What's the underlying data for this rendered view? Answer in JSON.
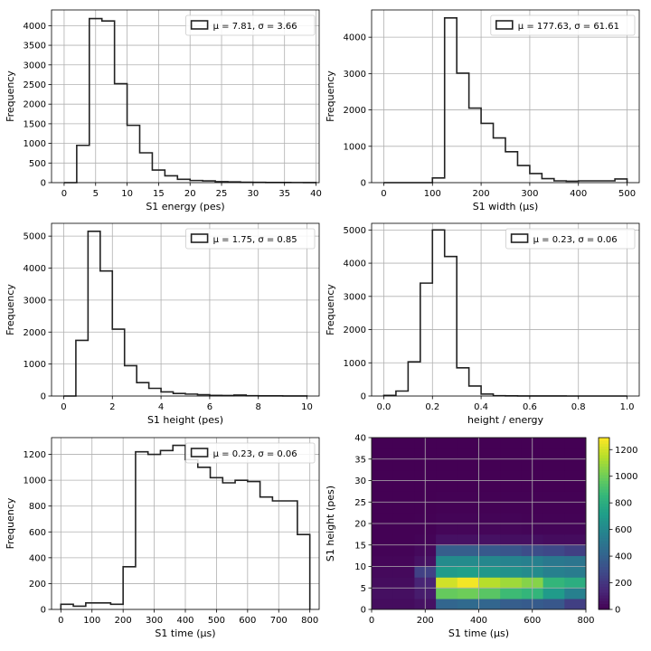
{
  "chart_data": [
    {
      "type": "histogram",
      "xlabel": "S1 energy (pes)",
      "ylabel": "Frequency",
      "xlim": [
        -2,
        40.5
      ],
      "ylim": [
        0,
        4400
      ],
      "xticks": [
        0,
        5,
        10,
        15,
        20,
        25,
        30,
        35,
        40
      ],
      "yticks": [
        0,
        500,
        1000,
        1500,
        2000,
        2500,
        3000,
        3500,
        4000
      ],
      "bin_edges": [
        0,
        2,
        4,
        6,
        8,
        10,
        12,
        14,
        16,
        18,
        20,
        22,
        24,
        26,
        28,
        30,
        32,
        34,
        36,
        38,
        40
      ],
      "counts": [
        0,
        950,
        4180,
        4120,
        2520,
        1460,
        760,
        320,
        175,
        85,
        55,
        45,
        25,
        18,
        10,
        8,
        5,
        4,
        3,
        2
      ],
      "legend": {
        "label": "μ = 7.81,  σ = 3.66",
        "loc": "upper right"
      },
      "grid": true
    },
    {
      "type": "histogram",
      "xlabel": "S1 width (μs)",
      "ylabel": "Frequency",
      "xlim": [
        -25,
        525
      ],
      "ylim": [
        0,
        4750
      ],
      "xticks": [
        0,
        100,
        200,
        300,
        400,
        500
      ],
      "yticks": [
        0,
        1000,
        2000,
        3000,
        4000
      ],
      "bin_edges": [
        0,
        25,
        50,
        75,
        100,
        125,
        150,
        175,
        200,
        225,
        250,
        275,
        300,
        325,
        350,
        375,
        400,
        425,
        450,
        475,
        500
      ],
      "counts": [
        0,
        0,
        0,
        0,
        130,
        4530,
        3010,
        2050,
        1630,
        1230,
        850,
        470,
        250,
        110,
        50,
        40,
        50,
        50,
        50,
        100
      ],
      "legend": {
        "label": "μ = 177.63,  σ = 61.61",
        "loc": "upper right"
      },
      "grid": true
    },
    {
      "type": "histogram",
      "xlabel": "S1 height (pes)",
      "ylabel": "Frequency",
      "xlim": [
        -0.5,
        10.5
      ],
      "ylim": [
        0,
        5400
      ],
      "xticks": [
        0,
        2,
        4,
        6,
        8,
        10
      ],
      "yticks": [
        0,
        1000,
        2000,
        3000,
        4000,
        5000
      ],
      "bin_edges": [
        0,
        0.5,
        1,
        1.5,
        2,
        2.5,
        3,
        3.5,
        4,
        4.5,
        5,
        5.5,
        6,
        6.5,
        7,
        7.5,
        8,
        8.5,
        9,
        9.5,
        10
      ],
      "counts": [
        0,
        1740,
        5150,
        3910,
        2090,
        950,
        420,
        240,
        130,
        80,
        60,
        40,
        20,
        15,
        30,
        10,
        5,
        5,
        3,
        2
      ],
      "legend": {
        "label": "μ = 1.75,  σ = 0.85",
        "loc": "upper right"
      },
      "grid": true
    },
    {
      "type": "histogram",
      "xlabel": "height / energy",
      "ylabel": "Frequency",
      "xlim": [
        -0.05,
        1.05
      ],
      "ylim": [
        0,
        5200
      ],
      "xticks": [
        0.0,
        0.2,
        0.4,
        0.6,
        0.8,
        1.0
      ],
      "yticks": [
        0,
        1000,
        2000,
        3000,
        4000,
        5000
      ],
      "bin_edges": [
        0,
        0.05,
        0.1,
        0.15,
        0.2,
        0.25,
        0.3,
        0.35,
        0.4,
        0.45,
        0.5,
        0.55,
        0.6,
        0.65,
        0.7,
        0.75,
        0.8,
        0.85,
        0.9,
        0.95,
        1.0
      ],
      "counts": [
        20,
        150,
        1030,
        3400,
        5000,
        4200,
        850,
        300,
        60,
        10,
        5,
        3,
        2,
        1,
        1,
        0,
        0,
        0,
        0,
        0
      ],
      "legend": {
        "label": "μ = 0.23,  σ = 0.06",
        "loc": "upper right"
      },
      "grid": true
    },
    {
      "type": "histogram",
      "xlabel": "S1 time (μs)",
      "ylabel": "Frequency",
      "xlim": [
        -30,
        830
      ],
      "ylim": [
        0,
        1330
      ],
      "xticks": [
        0,
        100,
        200,
        300,
        400,
        500,
        600,
        700,
        800
      ],
      "yticks": [
        0,
        200,
        400,
        600,
        800,
        1000,
        1200
      ],
      "bin_edges": [
        0,
        40,
        80,
        120,
        160,
        200,
        240,
        280,
        320,
        360,
        400,
        440,
        480,
        520,
        560,
        600,
        640,
        680,
        720,
        760,
        800
      ],
      "counts": [
        40,
        25,
        50,
        50,
        40,
        330,
        1220,
        1200,
        1230,
        1270,
        1160,
        1100,
        1020,
        980,
        1000,
        990,
        870,
        840,
        840,
        580
      ],
      "legend": {
        "label": "μ = 0.23,  σ = 0.06",
        "loc": "upper right"
      },
      "grid": true
    },
    {
      "type": "heatmap",
      "xlabel": "S1 time (μs)",
      "ylabel": "S1 height (pes)",
      "xlim": [
        0,
        800
      ],
      "ylim": [
        0,
        40
      ],
      "xticks": [
        0,
        200,
        400,
        600,
        800
      ],
      "yticks": [
        0,
        5,
        10,
        15,
        20,
        25,
        30,
        35,
        40
      ],
      "x_edges": [
        0,
        80,
        160,
        240,
        320,
        400,
        480,
        560,
        640,
        720,
        800
      ],
      "y_edges": [
        0,
        2.5,
        5,
        7.5,
        10,
        12.5,
        15,
        17.5,
        20,
        22.5,
        25,
        27.5,
        30,
        32.5,
        35,
        37.5,
        40
      ],
      "z": [
        [
          40,
          40,
          60,
          420,
          440,
          420,
          380,
          370,
          350,
          240
        ],
        [
          50,
          50,
          100,
          980,
          1000,
          950,
          880,
          850,
          700,
          560
        ],
        [
          40,
          40,
          130,
          1200,
          1270,
          1150,
          1100,
          1050,
          850,
          800
        ],
        [
          30,
          30,
          250,
          700,
          720,
          680,
          650,
          620,
          560,
          540
        ],
        [
          20,
          20,
          60,
          620,
          620,
          600,
          580,
          560,
          520,
          500
        ],
        [
          10,
          10,
          30,
          380,
          380,
          360,
          340,
          300,
          280,
          240
        ],
        [
          5,
          5,
          10,
          60,
          60,
          60,
          50,
          50,
          40,
          40
        ],
        [
          2,
          2,
          5,
          20,
          20,
          20,
          18,
          15,
          15,
          15
        ],
        [
          1,
          1,
          2,
          10,
          12,
          10,
          10,
          8,
          8,
          8
        ],
        [
          0,
          0,
          1,
          5,
          5,
          5,
          5,
          4,
          4,
          4
        ],
        [
          0,
          0,
          0,
          2,
          2,
          2,
          2,
          2,
          2,
          2
        ],
        [
          0,
          0,
          0,
          1,
          1,
          1,
          1,
          1,
          1,
          1
        ],
        [
          0,
          0,
          0,
          0,
          0,
          0,
          0,
          0,
          0,
          0
        ],
        [
          0,
          0,
          0,
          0,
          0,
          0,
          0,
          0,
          0,
          0
        ],
        [
          0,
          0,
          0,
          0,
          0,
          0,
          0,
          0,
          0,
          0
        ],
        [
          0,
          0,
          0,
          0,
          0,
          0,
          0,
          0,
          0,
          0
        ]
      ],
      "colormap": "viridis",
      "colorbar": {
        "min": 0,
        "max": 1290,
        "ticks": [
          0,
          200,
          400,
          600,
          800,
          1000,
          1200
        ]
      },
      "grid": true
    }
  ]
}
